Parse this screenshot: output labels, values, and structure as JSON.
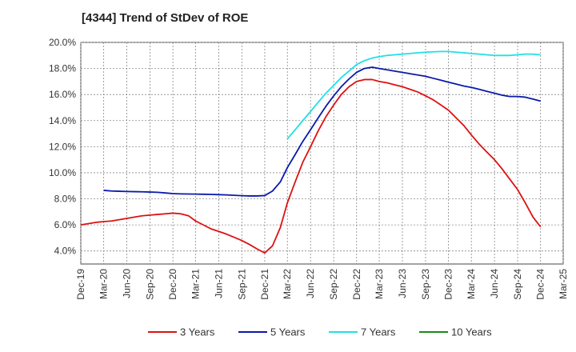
{
  "chart_data": {
    "type": "line",
    "title": "[4344]  Trend of StDev of ROE",
    "xlabel": "",
    "ylabel": "",
    "ylim": [
      3.0,
      20.0
    ],
    "y_ticks": [
      4,
      6,
      8,
      10,
      12,
      14,
      16,
      18,
      20
    ],
    "y_tick_labels": [
      "4.0%",
      "6.0%",
      "8.0%",
      "10.0%",
      "12.0%",
      "14.0%",
      "16.0%",
      "18.0%",
      "20.0%"
    ],
    "x_tick_labels": [
      "Dec-19",
      "Mar-20",
      "Jun-20",
      "Sep-20",
      "Dec-20",
      "Mar-21",
      "Jun-21",
      "Sep-21",
      "Dec-21",
      "Mar-22",
      "Jun-22",
      "Sep-22",
      "Dec-22",
      "Mar-23",
      "Jun-23",
      "Sep-23",
      "Dec-23",
      "Mar-24",
      "Jun-24",
      "Sep-24",
      "Dec-24",
      "Mar-25"
    ],
    "grid": true,
    "legend_position": "bottom",
    "series": [
      {
        "name": "3 Years",
        "color": "#dd1111",
        "points": [
          [
            "2019-12",
            6.0
          ],
          [
            "2020-01",
            6.1
          ],
          [
            "2020-02",
            6.2
          ],
          [
            "2020-03",
            6.25
          ],
          [
            "2020-04",
            6.3
          ],
          [
            "2020-05",
            6.4
          ],
          [
            "2020-06",
            6.5
          ],
          [
            "2020-07",
            6.6
          ],
          [
            "2020-08",
            6.7
          ],
          [
            "2020-09",
            6.75
          ],
          [
            "2020-10",
            6.8
          ],
          [
            "2020-11",
            6.85
          ],
          [
            "2020-12",
            6.9
          ],
          [
            "2021-01",
            6.85
          ],
          [
            "2021-02",
            6.7
          ],
          [
            "2021-03",
            6.3
          ],
          [
            "2021-04",
            6.0
          ],
          [
            "2021-05",
            5.7
          ],
          [
            "2021-06",
            5.5
          ],
          [
            "2021-07",
            5.3
          ],
          [
            "2021-08",
            5.05
          ],
          [
            "2021-09",
            4.8
          ],
          [
            "2021-10",
            4.5
          ],
          [
            "2021-11",
            4.15
          ],
          [
            "2021-12",
            3.85
          ],
          [
            "2022-01",
            4.4
          ],
          [
            "2022-02",
            5.8
          ],
          [
            "2022-03",
            7.7
          ],
          [
            "2022-04",
            9.3
          ],
          [
            "2022-05",
            10.8
          ],
          [
            "2022-06",
            12.0
          ],
          [
            "2022-07",
            13.2
          ],
          [
            "2022-08",
            14.3
          ],
          [
            "2022-09",
            15.2
          ],
          [
            "2022-10",
            16.0
          ],
          [
            "2022-11",
            16.6
          ],
          [
            "2022-12",
            17.0
          ],
          [
            "2023-01",
            17.15
          ],
          [
            "2023-02",
            17.15
          ],
          [
            "2023-03",
            17.0
          ],
          [
            "2023-04",
            16.9
          ],
          [
            "2023-05",
            16.75
          ],
          [
            "2023-06",
            16.6
          ],
          [
            "2023-07",
            16.4
          ],
          [
            "2023-08",
            16.2
          ],
          [
            "2023-09",
            15.9
          ],
          [
            "2023-10",
            15.6
          ],
          [
            "2023-11",
            15.2
          ],
          [
            "2023-12",
            14.8
          ],
          [
            "2024-01",
            14.2
          ],
          [
            "2024-02",
            13.6
          ],
          [
            "2024-03",
            12.9
          ],
          [
            "2024-04",
            12.2
          ],
          [
            "2024-05",
            11.6
          ],
          [
            "2024-06",
            11.0
          ],
          [
            "2024-07",
            10.3
          ],
          [
            "2024-08",
            9.5
          ],
          [
            "2024-09",
            8.7
          ],
          [
            "2024-10",
            7.7
          ],
          [
            "2024-11",
            6.6
          ],
          [
            "2024-12",
            5.85
          ]
        ]
      },
      {
        "name": "5 Years",
        "color": "#0a1aaa",
        "points": [
          [
            "2020-03",
            8.65
          ],
          [
            "2020-04",
            8.6
          ],
          [
            "2020-05",
            8.58
          ],
          [
            "2020-06",
            8.56
          ],
          [
            "2020-07",
            8.55
          ],
          [
            "2020-08",
            8.54
          ],
          [
            "2020-09",
            8.52
          ],
          [
            "2020-10",
            8.5
          ],
          [
            "2020-11",
            8.45
          ],
          [
            "2020-12",
            8.4
          ],
          [
            "2021-01",
            8.38
          ],
          [
            "2021-02",
            8.37
          ],
          [
            "2021-03",
            8.36
          ],
          [
            "2021-04",
            8.35
          ],
          [
            "2021-05",
            8.34
          ],
          [
            "2021-06",
            8.32
          ],
          [
            "2021-07",
            8.3
          ],
          [
            "2021-08",
            8.27
          ],
          [
            "2021-09",
            8.24
          ],
          [
            "2021-10",
            8.22
          ],
          [
            "2021-11",
            8.22
          ],
          [
            "2021-12",
            8.25
          ],
          [
            "2022-01",
            8.6
          ],
          [
            "2022-02",
            9.3
          ],
          [
            "2022-03",
            10.4
          ],
          [
            "2022-04",
            11.4
          ],
          [
            "2022-05",
            12.4
          ],
          [
            "2022-06",
            13.3
          ],
          [
            "2022-07",
            14.2
          ],
          [
            "2022-08",
            15.1
          ],
          [
            "2022-09",
            15.9
          ],
          [
            "2022-10",
            16.6
          ],
          [
            "2022-11",
            17.2
          ],
          [
            "2022-12",
            17.7
          ],
          [
            "2023-01",
            18.0
          ],
          [
            "2023-02",
            18.1
          ],
          [
            "2023-03",
            18.0
          ],
          [
            "2023-04",
            17.9
          ],
          [
            "2023-05",
            17.8
          ],
          [
            "2023-06",
            17.7
          ],
          [
            "2023-07",
            17.6
          ],
          [
            "2023-08",
            17.5
          ],
          [
            "2023-09",
            17.4
          ],
          [
            "2023-10",
            17.25
          ],
          [
            "2023-11",
            17.1
          ],
          [
            "2023-12",
            16.95
          ],
          [
            "2024-01",
            16.8
          ],
          [
            "2024-02",
            16.65
          ],
          [
            "2024-03",
            16.55
          ],
          [
            "2024-04",
            16.4
          ],
          [
            "2024-05",
            16.25
          ],
          [
            "2024-06",
            16.1
          ],
          [
            "2024-07",
            15.95
          ],
          [
            "2024-08",
            15.85
          ],
          [
            "2024-09",
            15.85
          ],
          [
            "2024-10",
            15.8
          ],
          [
            "2024-11",
            15.65
          ],
          [
            "2024-12",
            15.5
          ]
        ]
      },
      {
        "name": "7 Years",
        "color": "#1ee0e6",
        "points": [
          [
            "2022-03",
            12.6
          ],
          [
            "2022-04",
            13.3
          ],
          [
            "2022-05",
            14.0
          ],
          [
            "2022-06",
            14.7
          ],
          [
            "2022-07",
            15.4
          ],
          [
            "2022-08",
            16.1
          ],
          [
            "2022-09",
            16.7
          ],
          [
            "2022-10",
            17.3
          ],
          [
            "2022-11",
            17.8
          ],
          [
            "2022-12",
            18.3
          ],
          [
            "2023-01",
            18.6
          ],
          [
            "2023-02",
            18.8
          ],
          [
            "2023-03",
            18.9
          ],
          [
            "2023-04",
            19.0
          ],
          [
            "2023-05",
            19.05
          ],
          [
            "2023-06",
            19.1
          ],
          [
            "2023-07",
            19.15
          ],
          [
            "2023-08",
            19.2
          ],
          [
            "2023-09",
            19.25
          ],
          [
            "2023-10",
            19.28
          ],
          [
            "2023-11",
            19.3
          ],
          [
            "2023-12",
            19.3
          ],
          [
            "2024-01",
            19.25
          ],
          [
            "2024-02",
            19.2
          ],
          [
            "2024-03",
            19.15
          ],
          [
            "2024-04",
            19.1
          ],
          [
            "2024-05",
            19.05
          ],
          [
            "2024-06",
            19.0
          ],
          [
            "2024-07",
            19.0
          ],
          [
            "2024-08",
            19.0
          ],
          [
            "2024-09",
            19.05
          ],
          [
            "2024-10",
            19.1
          ],
          [
            "2024-11",
            19.1
          ],
          [
            "2024-12",
            19.05
          ]
        ]
      },
      {
        "name": "10 Years",
        "color": "#1a8a1a",
        "points": []
      }
    ]
  }
}
